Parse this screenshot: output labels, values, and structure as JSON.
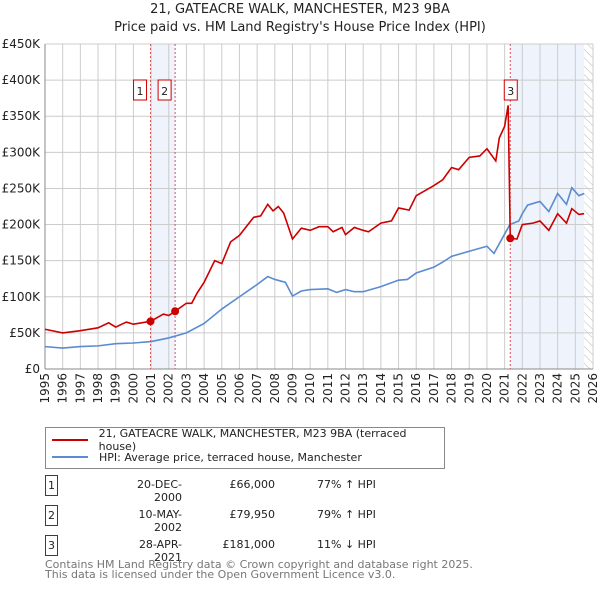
{
  "chart_data": {
    "type": "line",
    "title": "21, GATEACRE WALK, MANCHESTER, M23 9BA",
    "subtitle": "Price paid vs. HM Land Registry's House Price Index (HPI)",
    "xlim": [
      1995,
      2026
    ],
    "ylim": [
      0,
      450000
    ],
    "x_ticks": [
      "1995",
      "1996",
      "1997",
      "1998",
      "1999",
      "2000",
      "2001",
      "2002",
      "2003",
      "2004",
      "2005",
      "2006",
      "2007",
      "2008",
      "2009",
      "2010",
      "2011",
      "2012",
      "2013",
      "2014",
      "2015",
      "2016",
      "2017",
      "2018",
      "2019",
      "2020",
      "2021",
      "2022",
      "2023",
      "2024",
      "2025",
      "2026"
    ],
    "y_ticks": [
      {
        "v": 0,
        "label": "£0"
      },
      {
        "v": 50000,
        "label": "£50K"
      },
      {
        "v": 100000,
        "label": "£100K"
      },
      {
        "v": 150000,
        "label": "£150K"
      },
      {
        "v": 200000,
        "label": "£200K"
      },
      {
        "v": 250000,
        "label": "£250K"
      },
      {
        "v": 300000,
        "label": "£300K"
      },
      {
        "v": 350000,
        "label": "£350K"
      },
      {
        "v": 400000,
        "label": "£400K"
      },
      {
        "v": 450000,
        "label": "£450K"
      }
    ],
    "grid": true,
    "legend_position": "below",
    "shaded_spans": [
      [
        2000.97,
        2002.36
      ],
      [
        2021.32,
        2025.5
      ]
    ],
    "forecast_hatch_from": 2025.5,
    "series": [
      {
        "name": "21, GATEACRE WALK, MANCHESTER, M23 9BA (terraced house)",
        "color": "#cc0000",
        "x": [
          1995,
          1996,
          1997,
          1998,
          1998.6,
          1999,
          1999.6,
          2000,
          2000.97,
          2001.7,
          2002,
          2002.36,
          2003,
          2003.3,
          2003.6,
          2004,
          2004.6,
          2005,
          2005.5,
          2006,
          2006.8,
          2007.2,
          2007.6,
          2007.9,
          2008.2,
          2008.5,
          2009,
          2009.5,
          2010,
          2010.5,
          2011,
          2011.3,
          2011.8,
          2012,
          2012.5,
          2013,
          2013.3,
          2014,
          2014.6,
          2015,
          2015.6,
          2016,
          2017,
          2017.5,
          2018,
          2018.4,
          2019,
          2019.6,
          2020,
          2020.5,
          2020.7,
          2021,
          2021.2,
          2021.32,
          2021.7,
          2022,
          2022.6,
          2023,
          2023.5,
          2024,
          2024.5,
          2024.8,
          2025.2,
          2025.5
        ],
        "y": [
          55,
          50,
          53,
          57,
          64,
          58,
          65,
          62,
          66,
          76,
          74,
          80,
          91,
          91,
          105,
          120,
          150,
          146,
          176,
          185,
          210,
          212,
          228,
          219,
          225,
          216,
          180,
          195,
          192,
          197,
          197,
          190,
          196,
          186,
          196,
          192,
          190,
          202,
          205,
          223,
          220,
          240,
          254,
          262,
          279,
          276,
          293,
          295,
          305,
          288,
          320,
          336,
          365,
          181,
          180,
          200,
          202,
          205,
          192,
          215,
          202,
          222,
          214,
          215
        ],
        "y_unit": "£K"
      },
      {
        "name": "HPI: Average price, terraced house, Manchester",
        "color": "#5b8bd0",
        "x": [
          1995,
          1996,
          1997,
          1998,
          1999,
          2000,
          2001,
          2002,
          2003,
          2004,
          2005,
          2006,
          2007,
          2007.6,
          2008,
          2008.6,
          2009,
          2009.5,
          2010,
          2011,
          2011.5,
          2012,
          2012.5,
          2013,
          2014,
          2015,
          2015.5,
          2016,
          2017,
          2017.5,
          2018,
          2019,
          2020,
          2020.4,
          2020.8,
          2021.3,
          2021.8,
          2022,
          2022.3,
          2023,
          2023.5,
          2024,
          2024.5,
          2024.8,
          2025.2,
          2025.5
        ],
        "y": [
          31,
          29,
          31,
          32,
          35,
          36,
          38,
          43,
          50,
          63,
          83,
          100,
          117,
          128,
          124,
          120,
          101,
          108,
          110,
          111,
          106,
          110,
          107,
          107,
          114,
          123,
          124,
          133,
          141,
          148,
          156,
          163,
          170,
          160,
          178,
          200,
          205,
          215,
          227,
          232,
          218,
          243,
          228,
          251,
          240,
          243
        ],
        "y_unit": "£K"
      }
    ],
    "sales": [
      {
        "id": "1",
        "x": 2000.97,
        "y": 66,
        "date": "20-DEC-2000",
        "price": "£66,000",
        "hpi": "77% ↑ HPI"
      },
      {
        "id": "2",
        "x": 2002.36,
        "y": 79.95,
        "date": "10-MAY-2002",
        "price": "£79,950",
        "hpi": "79% ↑ HPI"
      },
      {
        "id": "3",
        "x": 2021.32,
        "y": 181,
        "date": "28-APR-2021",
        "price": "£181,000",
        "hpi": "11% ↓ HPI"
      }
    ]
  },
  "footer": {
    "line1": "Contains HM Land Registry data © Crown copyright and database right 2025.",
    "line2": "This data is licensed under the Open Government Licence v3.0."
  }
}
